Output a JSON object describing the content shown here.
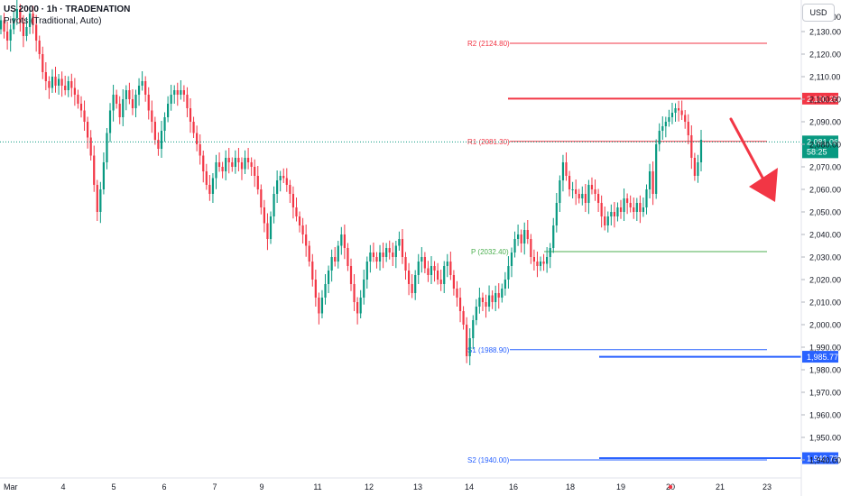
{
  "legend": {
    "title": "US 2000 · 1h · TRADENATION",
    "subtitle": "Pivots (Traditional, Auto)"
  },
  "currency_button": "USD",
  "chart_data": {
    "type": "candlestick",
    "y_axis": {
      "min": 1932,
      "max": 2144,
      "ticks": [
        2130,
        2120,
        2110,
        2100,
        2090,
        2080,
        2070,
        2060,
        2050,
        2040,
        2030,
        2020,
        2010,
        2000,
        1990,
        1980,
        1970,
        1960,
        1950,
        1940
      ],
      "tick_labels": [
        "2,130.00",
        "2,120.00",
        "2,110.00",
        "2,100.00",
        "2,090.00",
        "2,080.00",
        "2,070.00",
        "2,060.00",
        "2,050.00",
        "2,040.00",
        "2,030.00",
        "2,020.00",
        "2,010.00",
        "2,000.00",
        "1,990.00",
        "1,980.00",
        "1,970.00",
        "1,960.00",
        "1,950.00",
        "1,940.00"
      ],
      "partial_top_label": "2,140.00"
    },
    "x_axis": {
      "labels": [
        "Mar",
        "4",
        "5",
        "6",
        "7",
        "9",
        "11",
        "12",
        "13",
        "14",
        "16",
        "18",
        "19",
        "20",
        "21",
        "23"
      ],
      "current_time_label": "20"
    },
    "pivots": [
      {
        "label": "R2 (2124.80)",
        "value": 2124.8,
        "color": "#f23645"
      },
      {
        "label": "R1 (2081.30)",
        "value": 2081.3,
        "color": "#f23645"
      },
      {
        "label": "P (2032.40)",
        "value": 2032.4,
        "color": "#4caf50"
      },
      {
        "label": "S1 (1988.90)",
        "value": 1988.9,
        "color": "#2962ff"
      },
      {
        "label": "S2 (1940.00)",
        "value": 1940.0,
        "color": "#2962ff"
      }
    ],
    "horizontal_levels": [
      {
        "value": 2100.25,
        "label": "2,100.25",
        "color": "#f23645"
      },
      {
        "value": 1985.77,
        "label": "1,985.77",
        "color": "#2962ff"
      },
      {
        "value": 1940.79,
        "label": "1,940.79",
        "color": "#2962ff"
      }
    ],
    "last_price": {
      "value": 2081.06,
      "label": "2,081.06",
      "countdown": "58:25",
      "color": "#089981"
    },
    "annotation": {
      "type": "down-arrow",
      "color": "#f23645"
    },
    "closes": [
      2135,
      2130,
      2126,
      2131,
      2136,
      2140,
      2134,
      2128,
      2132,
      2138,
      2133,
      2126,
      2120,
      2112,
      2108,
      2105,
      2110,
      2106,
      2109,
      2106,
      2104,
      2108,
      2105,
      2102,
      2098,
      2095,
      2090,
      2083,
      2075,
      2062,
      2050,
      2060,
      2072,
      2085,
      2095,
      2102,
      2098,
      2092,
      2100,
      2104,
      2100,
      2096,
      2102,
      2106,
      2108,
      2102,
      2095,
      2090,
      2082,
      2078,
      2086,
      2092,
      2098,
      2102,
      2104,
      2102,
      2104,
      2102,
      2096,
      2090,
      2085,
      2080,
      2075,
      2068,
      2062,
      2058,
      2065,
      2072,
      2070,
      2068,
      2074,
      2072,
      2070,
      2074,
      2072,
      2069,
      2074,
      2072,
      2070,
      2066,
      2060,
      2052,
      2045,
      2038,
      2048,
      2058,
      2064,
      2066,
      2065,
      2062,
      2058,
      2052,
      2048,
      2044,
      2040,
      2035,
      2028,
      2020,
      2012,
      2005,
      2012,
      2018,
      2024,
      2030,
      2028,
      2035,
      2040,
      2034,
      2026,
      2018,
      2010,
      2005,
      2012,
      2020,
      2028,
      2032,
      2030,
      2028,
      2032,
      2030,
      2034,
      2032,
      2030,
      2035,
      2038,
      2030,
      2024,
      2018,
      2014,
      2022,
      2028,
      2030,
      2025,
      2022,
      2026,
      2024,
      2020,
      2018,
      2026,
      2028,
      2022,
      2016,
      2012,
      2006,
      2000,
      1986,
      1994,
      2002,
      2008,
      2012,
      2010,
      2008,
      2013,
      2010,
      2014,
      2012,
      2016,
      2020,
      2026,
      2032,
      2038,
      2040,
      2036,
      2042,
      2038,
      2030,
      2028,
      2026,
      2028,
      2027,
      2030,
      2034,
      2044,
      2054,
      2064,
      2072,
      2066,
      2060,
      2060,
      2058,
      2056,
      2058,
      2054,
      2062,
      2060,
      2058,
      2054,
      2048,
      2044,
      2048,
      2050,
      2048,
      2052,
      2050,
      2056,
      2054,
      2052,
      2050,
      2054,
      2050,
      2052,
      2060,
      2068,
      2058,
      2080,
      2086,
      2088,
      2090,
      2092,
      2094,
      2096,
      2095,
      2093,
      2090,
      2084,
      2074,
      2066,
      2072,
      2082
    ]
  }
}
